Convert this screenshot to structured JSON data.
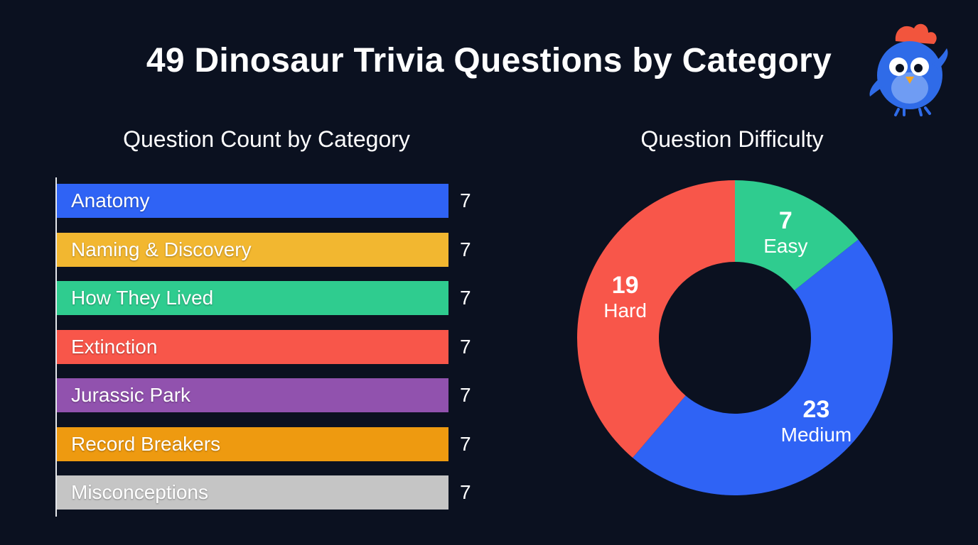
{
  "title": "49 Dinosaur Trivia Questions by Category",
  "chart_data": [
    {
      "type": "bar",
      "orientation": "horizontal",
      "title": "Question Count by Category",
      "categories": [
        "Anatomy",
        "Naming & Discovery",
        "How They Lived",
        "Extinction",
        "Jurassic Park",
        "Record Breakers",
        "Misconceptions"
      ],
      "values": [
        7,
        7,
        7,
        7,
        7,
        7,
        7
      ],
      "colors": [
        "#2f63f5",
        "#f2b730",
        "#2fcc8f",
        "#f8564a",
        "#9152ae",
        "#ee9a10",
        "#c5c5c5"
      ],
      "xlim": [
        0,
        7
      ],
      "grid": false,
      "data_labels": true
    },
    {
      "type": "pie",
      "variant": "donut",
      "title": "Question Difficulty",
      "labels": [
        "Easy",
        "Medium",
        "Hard"
      ],
      "values": [
        7,
        23,
        19
      ],
      "colors": [
        "#2fcc8f",
        "#2f63f5",
        "#f8564a"
      ],
      "start": "top",
      "direction": "clockwise"
    }
  ],
  "mascot": {
    "icon": "blue-bird-mascot-icon",
    "body_color": "#2f6be8",
    "crest_color": "#f2553d"
  }
}
